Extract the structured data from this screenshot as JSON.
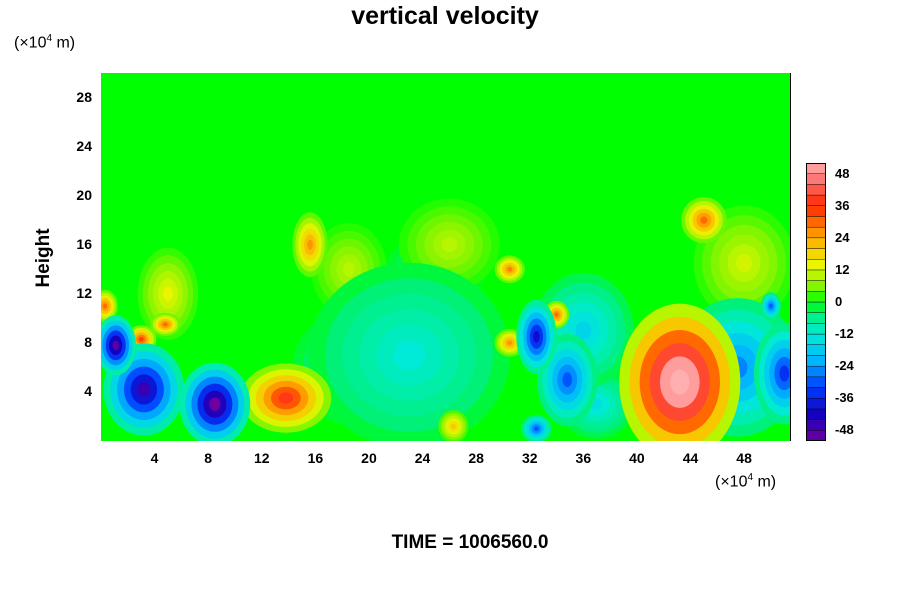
{
  "chart_data": {
    "type": "heatmap",
    "title": "vertical velocity",
    "ylabel": "Height",
    "y_unit": "(×10",
    "y_unit_exp": "4",
    "y_unit_tail": " m)",
    "x_unit": "(×10",
    "x_unit_exp": "4",
    "x_unit_tail": " m)",
    "xlim": [
      0,
      51.5
    ],
    "ylim": [
      0,
      30
    ],
    "x_ticks": [
      4,
      8,
      12,
      16,
      20,
      24,
      28,
      32,
      36,
      40,
      44,
      48
    ],
    "x_tick_labels": [
      "4",
      "8",
      "12",
      "16",
      "20",
      "24",
      "28",
      "32",
      "36",
      "40",
      "44",
      "48"
    ],
    "y_ticks": [
      4,
      8,
      12,
      16,
      20,
      24,
      28
    ],
    "y_tick_labels": [
      "4",
      "8",
      "12",
      "16",
      "20",
      "24",
      "28"
    ],
    "colorbar": {
      "min": -52,
      "max": 52,
      "levels": [
        -48,
        -36,
        -24,
        -12,
        0,
        12,
        24,
        36,
        48
      ],
      "labels": [
        "-48",
        "-36",
        "-24",
        "-12",
        "0",
        "12",
        "24",
        "36",
        "48"
      ]
    },
    "background_value": 0,
    "features": [
      {
        "name": "updraft-core-x43",
        "x": 43.2,
        "y": 4.8,
        "sx": 2.4,
        "sy": 3.4,
        "value": 60
      },
      {
        "name": "updraft-x14",
        "x": 13.8,
        "y": 3.5,
        "sx": 1.8,
        "sy": 1.5,
        "value": 38
      },
      {
        "name": "downdraft-x9",
        "x": 8.5,
        "y": 3.0,
        "sx": 1.4,
        "sy": 1.8,
        "value": -52
      },
      {
        "name": "downdraft-x4",
        "x": 3.2,
        "y": 4.2,
        "sx": 1.6,
        "sy": 2.0,
        "value": -46
      },
      {
        "name": "downdraft-x1",
        "x": 1.1,
        "y": 7.8,
        "sx": 0.8,
        "sy": 1.3,
        "value": -50
      },
      {
        "name": "downdraft-x32",
        "x": 32.5,
        "y": 8.5,
        "sx": 0.8,
        "sy": 1.6,
        "value": -40
      },
      {
        "name": "downdraft-x35",
        "x": 34.8,
        "y": 5.0,
        "sx": 1.2,
        "sy": 2.0,
        "value": -30
      },
      {
        "name": "downdraft-x46",
        "x": 47.5,
        "y": 6.0,
        "sx": 2.5,
        "sy": 3.0,
        "value": -26
      },
      {
        "name": "downdraft-x51",
        "x": 51.0,
        "y": 5.5,
        "sx": 1.2,
        "sy": 2.2,
        "value": -34
      },
      {
        "name": "updraft-x3-9",
        "x": 3.0,
        "y": 8.3,
        "sx": 0.6,
        "sy": 0.6,
        "value": 34
      },
      {
        "name": "updraft-x5-9",
        "x": 4.8,
        "y": 9.5,
        "sx": 0.6,
        "sy": 0.5,
        "value": 30
      },
      {
        "name": "updraft-x0-11",
        "x": 0.3,
        "y": 11.0,
        "sx": 0.5,
        "sy": 0.7,
        "value": 30
      },
      {
        "name": "updraft-x15-16",
        "x": 15.6,
        "y": 16.0,
        "sx": 0.7,
        "sy": 1.4,
        "value": 26
      },
      {
        "name": "updraft-x45-18",
        "x": 45.0,
        "y": 18.0,
        "sx": 0.9,
        "sy": 1.0,
        "value": 30
      },
      {
        "name": "updraft-x31-14",
        "x": 30.5,
        "y": 14.0,
        "sx": 0.6,
        "sy": 0.6,
        "value": 28
      },
      {
        "name": "updraft-x34-10",
        "x": 34.0,
        "y": 10.3,
        "sx": 0.5,
        "sy": 0.6,
        "value": 30
      },
      {
        "name": "updraft-x30-8",
        "x": 30.5,
        "y": 8.0,
        "sx": 0.6,
        "sy": 0.6,
        "value": 26
      },
      {
        "name": "updraft-x26-1",
        "x": 26.3,
        "y": 1.2,
        "sx": 0.6,
        "sy": 0.7,
        "value": 20
      },
      {
        "name": "updraft-x5-11",
        "x": 5.0,
        "y": 12.0,
        "sx": 1.2,
        "sy": 2.0,
        "value": 14
      },
      {
        "name": "updraft-x48-14",
        "x": 48.0,
        "y": 14.5,
        "sx": 2.0,
        "sy": 2.5,
        "value": 12
      },
      {
        "name": "updraft-x26-16",
        "x": 26.0,
        "y": 16.0,
        "sx": 2.0,
        "sy": 2.0,
        "value": 10
      },
      {
        "name": "updraft-x20-14",
        "x": 18.5,
        "y": 14.0,
        "sx": 1.5,
        "sy": 2.0,
        "value": 10
      },
      {
        "name": "downdraft-x23-9",
        "x": 23.0,
        "y": 7.0,
        "sx": 4.0,
        "sy": 4.0,
        "value": -12
      },
      {
        "name": "downdraft-x36-9",
        "x": 36.0,
        "y": 9.0,
        "sx": 2.0,
        "sy": 2.5,
        "value": -16
      },
      {
        "name": "downdraft-x33-1",
        "x": 32.5,
        "y": 1.0,
        "sx": 0.6,
        "sy": 0.6,
        "value": -30
      },
      {
        "name": "downdraft-x37-3",
        "x": 37.0,
        "y": 3.0,
        "sx": 1.5,
        "sy": 1.5,
        "value": -14
      },
      {
        "name": "downdraft-x19-6",
        "x": 19.0,
        "y": 6.0,
        "sx": 2.5,
        "sy": 2.5,
        "value": -10
      },
      {
        "name": "downdraft-x50-11",
        "x": 50.0,
        "y": 11.0,
        "sx": 0.4,
        "sy": 0.6,
        "value": -30
      },
      {
        "name": "downdraft-x25-14",
        "x": 25.0,
        "y": 14.0,
        "sx": 2.0,
        "sy": 1.5,
        "value": -8
      }
    ]
  },
  "time_label": "TIME = 1006560.0"
}
